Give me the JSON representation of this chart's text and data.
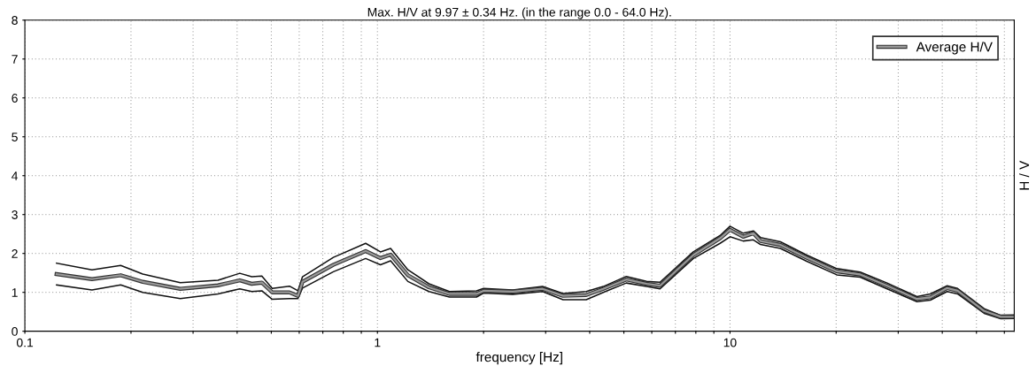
{
  "chart_data": {
    "type": "line",
    "title": "Max. H/V at 9.97 ± 0.34 Hz. (in the range 0.0 - 64.0 Hz).",
    "xlabel": "frequency [Hz]",
    "ylabel": "H / V",
    "log": "x",
    "xlim": [
      0.1,
      64
    ],
    "ylim": [
      0,
      8
    ],
    "xticks": [
      0.1,
      {
        "value": 0.2,
        "label": null
      },
      {
        "value": 0.3,
        "label": null
      },
      {
        "value": 0.4,
        "label": null
      },
      {
        "value": 0.5,
        "label": null
      },
      {
        "value": 0.6,
        "label": null
      },
      {
        "value": 0.7,
        "label": null
      },
      {
        "value": 0.8,
        "label": null
      },
      {
        "value": 0.9,
        "label": null
      },
      1,
      {
        "value": 2,
        "label": null
      },
      {
        "value": 3,
        "label": null
      },
      {
        "value": 4,
        "label": null
      },
      {
        "value": 5,
        "label": null
      },
      {
        "value": 6,
        "label": null
      },
      {
        "value": 7,
        "label": null
      },
      {
        "value": 8,
        "label": null
      },
      {
        "value": 9,
        "label": null
      },
      10,
      {
        "value": 20,
        "label": null
      },
      {
        "value": 30,
        "label": null
      },
      {
        "value": 40,
        "label": null
      },
      {
        "value": 50,
        "label": null
      },
      {
        "value": 60,
        "label": null
      }
    ],
    "yticks": [
      0,
      1,
      2,
      3,
      4,
      5,
      6,
      7,
      8
    ],
    "grid": true,
    "legend": "top right",
    "line_style": "solid",
    "marker": "none",
    "x": [
      0.123,
      0.155,
      0.187,
      0.216,
      0.276,
      0.353,
      0.407,
      0.44,
      0.47,
      0.503,
      0.563,
      0.595,
      0.613,
      0.75,
      0.926,
      1.02,
      1.09,
      1.22,
      1.4,
      1.6,
      1.91,
      2.0,
      2.42,
      2.94,
      3.36,
      3.91,
      4.37,
      5.08,
      5.8,
      6.33,
      7.87,
      9.37,
      10,
      10.9,
      11.65,
      12.2,
      13.9,
      16.5,
      20.1,
      23.4,
      27.9,
      33.9,
      37,
      41.3,
      44.2,
      52.6,
      58.6,
      64
    ],
    "series": [
      {
        "color": "#111111",
        "values": [
          1.75,
          1.58,
          1.69,
          1.47,
          1.25,
          1.31,
          1.49,
          1.4,
          1.42,
          1.1,
          1.16,
          1.04,
          1.4,
          1.9,
          2.26,
          2.04,
          2.13,
          1.58,
          1.22,
          1.02,
          1.04,
          1.1,
          1.06,
          1.15,
          0.97,
          1.02,
          1.15,
          1.41,
          1.28,
          1.26,
          2.04,
          2.46,
          2.7,
          2.52,
          2.58,
          2.41,
          2.3,
          1.96,
          1.61,
          1.52,
          1.24,
          0.89,
          0.96,
          1.17,
          1.1,
          0.58,
          0.41,
          0.42
        ]
      },
      {
        "color": "#111111",
        "values": [
          1.19,
          1.06,
          1.19,
          1.0,
          0.84,
          0.96,
          1.09,
          1.02,
          1.04,
          0.82,
          0.84,
          0.84,
          1.11,
          1.53,
          1.87,
          1.71,
          1.81,
          1.28,
          1.02,
          0.88,
          0.88,
          0.98,
          0.95,
          1.02,
          0.81,
          0.81,
          1.0,
          1.24,
          1.15,
          1.09,
          1.87,
          2.26,
          2.43,
          2.32,
          2.35,
          2.23,
          2.13,
          1.8,
          1.45,
          1.39,
          1.09,
          0.76,
          0.8,
          1.02,
          0.96,
          0.46,
          0.32,
          0.33
        ]
      },
      {
        "name": "Average H/V",
        "color": "#999999",
        "values": [
          1.47,
          1.34,
          1.44,
          1.27,
          1.09,
          1.18,
          1.31,
          1.22,
          1.25,
          1.0,
          1.0,
          0.91,
          1.27,
          1.71,
          2.06,
          1.88,
          1.97,
          1.44,
          1.13,
          0.96,
          0.96,
          1.04,
          1.02,
          1.09,
          0.91,
          0.93,
          1.09,
          1.33,
          1.22,
          1.17,
          1.96,
          2.39,
          2.61,
          2.43,
          2.52,
          2.32,
          2.22,
          1.89,
          1.54,
          1.46,
          1.17,
          0.83,
          0.87,
          1.11,
          1.04,
          0.52,
          0.37,
          0.37
        ]
      }
    ]
  }
}
